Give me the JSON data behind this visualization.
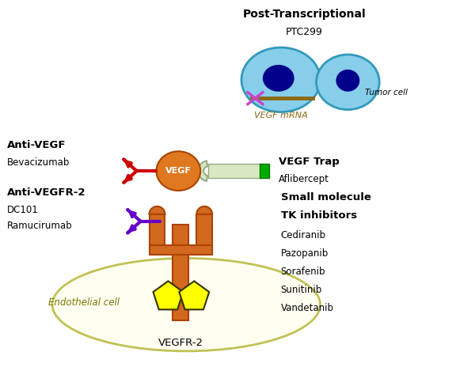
{
  "background_color": "#ffffff",
  "post_transcriptional_label": "Post-Transcriptional",
  "ptc299_label": "PTC299",
  "tumor_cell_label": "Tumor cell",
  "vegf_mrna_label": "VEGF mRNA",
  "anti_vegf_label": "Anti-VEGF",
  "bevacizumab_label": "Bevacizumab",
  "vegf_label": "VEGF",
  "vegf_trap_label": "VEGF Trap",
  "aflibercept_label": "Aflibercept",
  "anti_vegfr2_label": "Anti-VEGFR-2",
  "dc101_label": "DC101",
  "ramucirumab_label": "Ramucirumab",
  "vegfr2_label": "VEGFR-2",
  "endothelial_label": "Endothelial cell",
  "small_molecule_label": "Small molecule",
  "tk_inhibitors_label": "TK inhibitors",
  "inhibitors": [
    "Cediranib",
    "Pazopanib",
    "Sorafenib",
    "Sunitinib",
    "Vandetanib"
  ],
  "cell_color": "#87CEEB",
  "cell_dark_blue": "#00008B",
  "vegf_circle_color": "#E07820",
  "receptor_color": "#D2691E",
  "antibody_red_color": "#CC0000",
  "antibody_purple_color": "#6600CC",
  "trap_body_color": "#D8E8C0",
  "trap_end_color": "#00AA00",
  "endothelial_color": "#FFFFF0",
  "kinase_color": "#FFFF00",
  "mrna_color": "#8B6914",
  "x_color": "#CC44CC"
}
